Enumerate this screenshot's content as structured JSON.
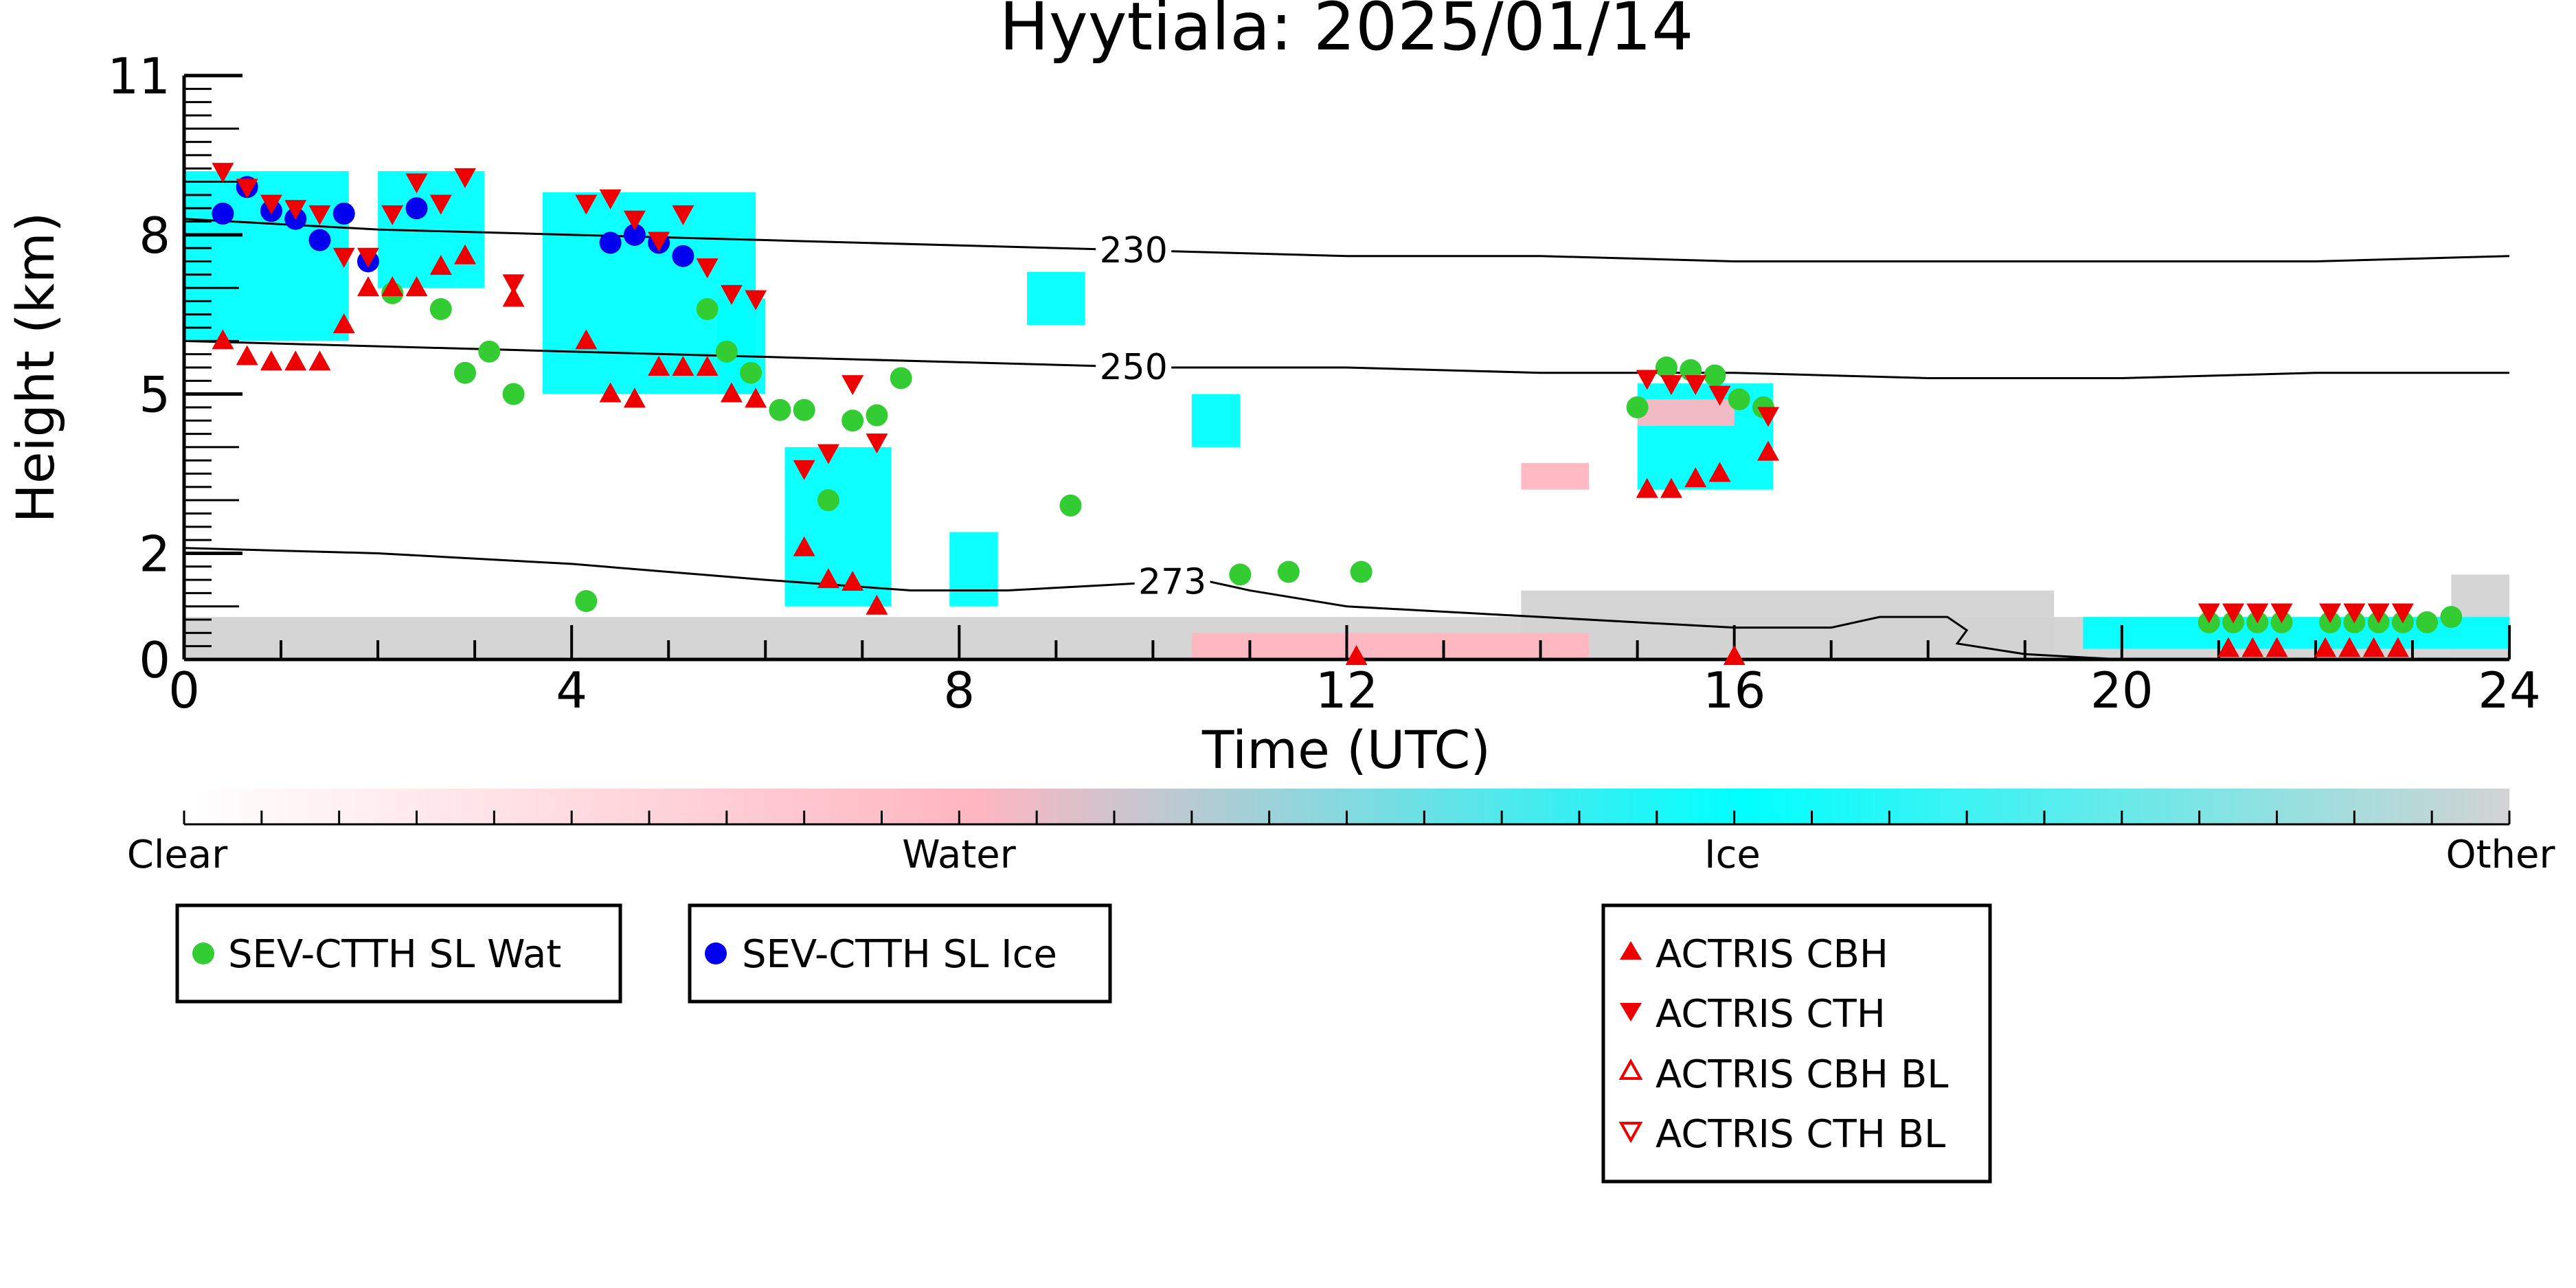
{
  "chart_data": {
    "type": "scatter",
    "title": "Hyytiala: 2025/01/14",
    "xlabel": "Time (UTC)",
    "ylabel": "Height (km)",
    "xlim": [
      0,
      24
    ],
    "ylim": [
      0,
      11
    ],
    "xticks": [
      0,
      4,
      8,
      12,
      16,
      20,
      24
    ],
    "yticks": [
      0,
      2,
      5,
      8,
      11
    ],
    "colorbar": {
      "labels": [
        "Clear",
        "Water",
        "Ice",
        "Other"
      ],
      "colors": [
        "#ffffff",
        "#ffb6c1",
        "#00ffff",
        "#d3d3d3"
      ]
    },
    "contours": [
      {
        "label": "230",
        "x": [
          0,
          2,
          4,
          6,
          8,
          10,
          12,
          14,
          16,
          18,
          20,
          22,
          24
        ],
        "y": [
          8.3,
          8.1,
          8.0,
          7.9,
          7.8,
          7.7,
          7.6,
          7.6,
          7.5,
          7.5,
          7.5,
          7.5,
          7.6
        ]
      },
      {
        "label": "250",
        "x": [
          0,
          2,
          4,
          6,
          8,
          10,
          12,
          14,
          16,
          18,
          19,
          20,
          22,
          24
        ],
        "y": [
          6.0,
          5.9,
          5.8,
          5.7,
          5.6,
          5.5,
          5.5,
          5.4,
          5.4,
          5.3,
          5.3,
          5.3,
          5.4,
          5.4
        ]
      },
      {
        "label": "273",
        "x": [
          0,
          2,
          4,
          6,
          7.5,
          8.5,
          9.5,
          10.5,
          11,
          12,
          14,
          16,
          17,
          17.5,
          18.2,
          18.4,
          18.3,
          19,
          20
        ],
        "y": [
          2.1,
          2.0,
          1.8,
          1.5,
          1.3,
          1.3,
          1.4,
          1.5,
          1.3,
          1.0,
          0.8,
          0.6,
          0.6,
          0.8,
          0.8,
          0.55,
          0.3,
          0.1,
          0.0
        ]
      }
    ],
    "series": [
      {
        "name": "SEV-CTTH SL Wat",
        "color": "#33cc33",
        "marker": "circle",
        "x": [
          2.15,
          2.65,
          2.9,
          3.15,
          3.4,
          4.15,
          5.4,
          5.6,
          5.85,
          6.15,
          6.4,
          6.65,
          6.9,
          7.15,
          7.4,
          9.15,
          10.9,
          11.4,
          12.15,
          15.0,
          15.3,
          15.55,
          15.8,
          16.05,
          16.3,
          20.9,
          21.15,
          21.4,
          21.65,
          22.15,
          22.4,
          22.65,
          22.9,
          23.15,
          23.4
        ],
        "y": [
          6.9,
          6.6,
          5.4,
          5.8,
          5.0,
          1.1,
          6.6,
          5.8,
          5.4,
          4.7,
          4.7,
          3.0,
          4.5,
          4.6,
          5.3,
          2.9,
          1.6,
          1.65,
          1.65,
          4.75,
          5.5,
          5.45,
          5.35,
          4.9,
          4.75,
          0.7,
          0.7,
          0.7,
          0.7,
          0.7,
          0.7,
          0.7,
          0.7,
          0.7,
          0.8
        ]
      },
      {
        "name": "SEV-CTTH SL Ice",
        "color": "#0000ee",
        "marker": "circle",
        "x": [
          0.4,
          0.65,
          0.9,
          1.15,
          1.4,
          1.65,
          1.9,
          2.4,
          4.4,
          4.65,
          4.9,
          5.15
        ],
        "y": [
          8.4,
          8.9,
          8.45,
          8.3,
          7.9,
          8.4,
          7.5,
          8.5,
          7.85,
          8.0,
          7.85,
          7.6
        ]
      },
      {
        "name": "ACTRIS CBH",
        "color": "#ee0000",
        "marker": "triangle-up",
        "x": [
          0.4,
          0.65,
          0.9,
          1.15,
          1.4,
          1.65,
          1.9,
          2.15,
          2.4,
          2.65,
          2.9,
          3.4,
          4.15,
          4.4,
          4.65,
          4.9,
          5.15,
          5.4,
          5.65,
          5.9,
          6.4,
          6.65,
          6.9,
          7.15,
          15.1,
          15.35,
          15.6,
          15.85,
          16.35,
          21.1,
          21.35,
          22.1,
          22.35,
          22.6,
          22.85,
          12.1,
          16.0,
          21.6
        ],
        "y": [
          6.0,
          5.7,
          5.6,
          5.6,
          5.6,
          6.3,
          7.0,
          7.0,
          7.0,
          7.4,
          7.6,
          6.8,
          6.0,
          5.0,
          4.9,
          5.5,
          5.5,
          5.5,
          5.0,
          4.9,
          2.1,
          1.5,
          1.45,
          1.0,
          3.2,
          3.2,
          3.4,
          3.5,
          3.9,
          0.2,
          0.2,
          0.2,
          0.2,
          0.2,
          0.2,
          0.05,
          0.05,
          0.2
        ]
      },
      {
        "name": "ACTRIS CTH",
        "color": "#ee0000",
        "marker": "triangle-down",
        "x": [
          0.4,
          0.65,
          0.9,
          1.15,
          1.4,
          1.65,
          1.9,
          2.15,
          2.4,
          2.65,
          2.9,
          3.4,
          4.15,
          4.4,
          4.65,
          4.9,
          5.15,
          5.4,
          5.65,
          5.9,
          6.4,
          6.65,
          6.9,
          7.15,
          15.1,
          15.35,
          15.6,
          15.85,
          16.35,
          20.9,
          21.15,
          21.4,
          21.65,
          22.15,
          22.4,
          22.65,
          22.9
        ],
        "y": [
          9.2,
          8.9,
          8.6,
          8.5,
          8.4,
          7.6,
          7.6,
          8.4,
          9.0,
          8.6,
          9.1,
          7.1,
          8.6,
          8.7,
          8.3,
          7.9,
          8.4,
          7.4,
          6.9,
          6.8,
          3.6,
          3.9,
          5.2,
          4.1,
          5.3,
          5.2,
          5.2,
          5.0,
          4.6,
          0.9,
          0.9,
          0.9,
          0.9,
          0.9,
          0.9,
          0.9,
          0.9
        ]
      }
    ],
    "legend_boxes": [
      {
        "position": "below-left",
        "entries": [
          "SEV-CTTH SL Wat"
        ]
      },
      {
        "position": "below-left-center",
        "entries": [
          "SEV-CTTH SL Ice"
        ]
      },
      {
        "position": "below-right",
        "entries": [
          "ACTRIS CBH",
          "ACTRIS CTH",
          "ACTRIS CBH BL",
          "ACTRIS CTH BL"
        ]
      }
    ],
    "legend": {
      "wat": "SEV-CTTH SL Wat",
      "ice": "SEV-CTTH SL Ice",
      "cbh": "ACTRIS CBH",
      "cth": "ACTRIS CTH",
      "cbh_bl": "ACTRIS CBH BL",
      "cth_bl": "ACTRIS CTH BL"
    }
  }
}
